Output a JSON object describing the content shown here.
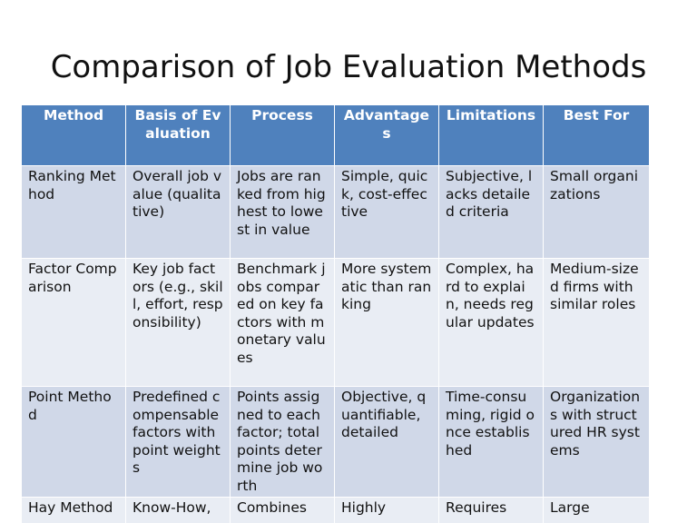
{
  "title": "Comparison of Job Evaluation Methods",
  "table": {
    "headers": [
      "Method",
      "Basis of Evaluation",
      "Process",
      "Advantages",
      "Limitations",
      "Best For"
    ],
    "rows": [
      [
        "Ranking Method",
        "Overall job value (qualitative)",
        "Jobs are ranked from highest to lowest in value",
        "Simple, quick, cost-effective",
        "Subjective, lacks detailed criteria",
        "Small organizations"
      ],
      [
        "Factor Comparison",
        "Key job factors (e.g., skill, effort, responsibility)",
        "Benchmark jobs compared on key factors with monetary values",
        "More systematic than ranking",
        "Complex, hard to explain, needs regular updates",
        "Medium-sized firms with similar roles"
      ],
      [
        "Point Method",
        "Predefined compensable factors with point weights",
        "Points assigned to each factor; total points determine job worth",
        "Objective, quantifiable, detailed",
        "Time-consuming, rigid once established",
        "Organizations with structured HR systems"
      ],
      [
        "Hay Method",
        "Know-How,",
        "Combines",
        "Highly",
        "Requires",
        "Large"
      ]
    ]
  }
}
